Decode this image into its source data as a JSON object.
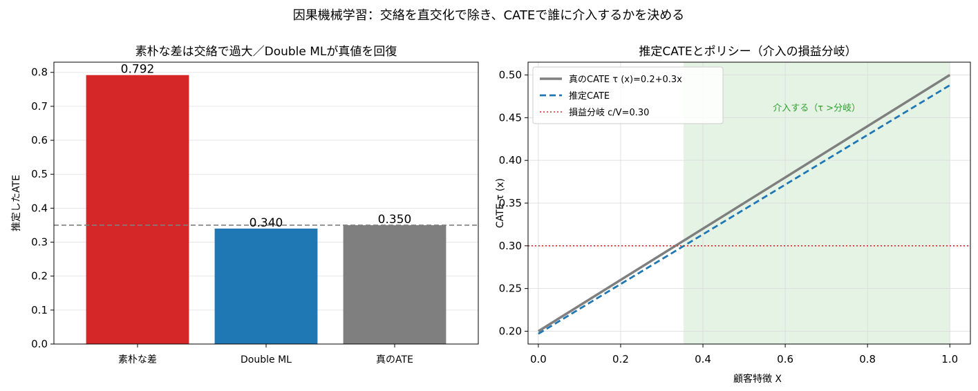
{
  "suptitle": "因果機械学習：交絡を直交化で除き、CATEで誰に介入するかを決める",
  "chart_data": [
    {
      "type": "bar",
      "title": "素朴な差は交絡で過大／Double MLが真値を回復",
      "xlabel": "",
      "ylabel": "推定したATE",
      "categories": [
        "素朴な差",
        "Double ML",
        "真のATE"
      ],
      "values": [
        0.792,
        0.34,
        0.35
      ],
      "value_labels": [
        "0.792",
        "0.340",
        "0.350"
      ],
      "colors": [
        "#d62728",
        "#1f77b4",
        "#7f7f7f"
      ],
      "ylim": [
        0,
        0.83
      ],
      "yticks": [
        0.0,
        0.1,
        0.2,
        0.3,
        0.4,
        0.5,
        0.6,
        0.7,
        0.8
      ],
      "ytick_labels": [
        "0.0",
        "0.1",
        "0.2",
        "0.3",
        "0.4",
        "0.5",
        "0.6",
        "0.7",
        "0.8"
      ],
      "reference_line": {
        "y": 0.35,
        "style": "dashed",
        "color": "#7f7f7f"
      },
      "grid": "y"
    },
    {
      "type": "line",
      "title": "推定CATEとポリシー（介入の損益分岐）",
      "xlabel": "顧客特徴 X",
      "ylabel": "CATE τ (x)",
      "xlim": [
        -0.025,
        1.05
      ],
      "ylim": [
        0.185,
        0.515
      ],
      "xticks": [
        0.0,
        0.2,
        0.4,
        0.6,
        0.8,
        1.0
      ],
      "xtick_labels": [
        "0.0",
        "0.2",
        "0.4",
        "0.6",
        "0.8",
        "1.0"
      ],
      "yticks": [
        0.2,
        0.25,
        0.3,
        0.35,
        0.4,
        0.45,
        0.5
      ],
      "ytick_labels": [
        "0.20",
        "0.25",
        "0.30",
        "0.35",
        "0.40",
        "0.45",
        "0.50"
      ],
      "series": [
        {
          "name": "真のCATE  τ (x)=0.2+0.3x",
          "x": [
            0.0,
            1.0
          ],
          "y": [
            0.2,
            0.5
          ],
          "color": "#7f7f7f",
          "style": "solid"
        },
        {
          "name": "推定CATE",
          "x": [
            0.0,
            1.0
          ],
          "y": [
            0.197,
            0.488
          ],
          "color": "#1f77b4",
          "style": "dashed"
        },
        {
          "name": "損益分岐 c/V=0.30",
          "x": [
            -0.025,
            1.05
          ],
          "y": [
            0.3,
            0.3
          ],
          "color": "#d62728",
          "style": "dotted"
        }
      ],
      "shaded_region": {
        "x": [
          0.353,
          1.0
        ],
        "color": "#2ca02c",
        "label": "介入する（τ >分岐）"
      },
      "legend": "top-left",
      "grid": "both"
    }
  ]
}
